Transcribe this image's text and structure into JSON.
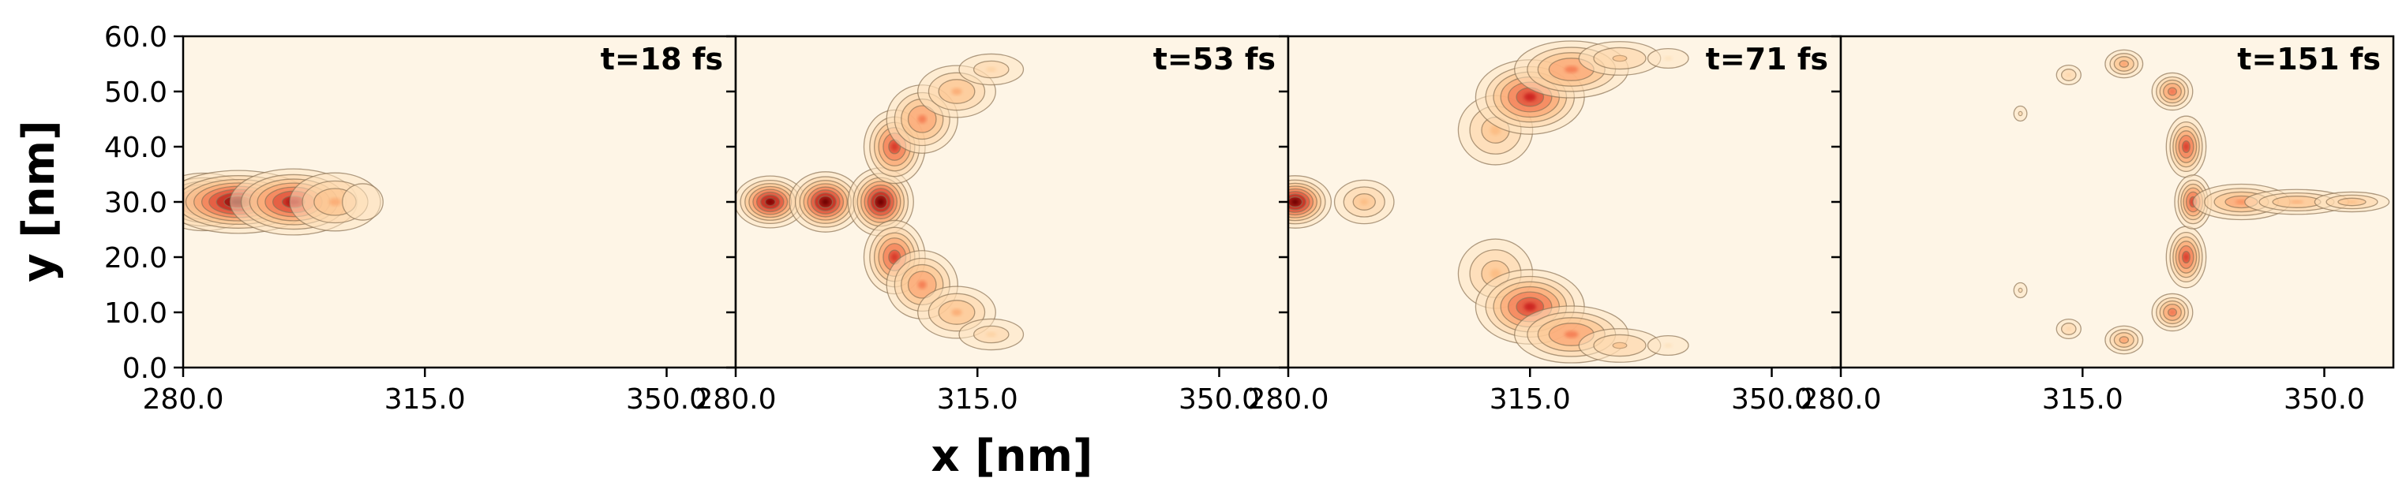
{
  "chart_data": {
    "type": "heatmap",
    "title": "",
    "xlabel": "x [nm]",
    "ylabel": "y [nm]",
    "colormap": "OrRd",
    "contour_color": "#8b7355",
    "background_color": "#fef5e6",
    "shared_y_axis": true,
    "ylim": [
      0,
      60
    ],
    "yticks": [
      "0.0",
      "10.0",
      "20.0",
      "30.0",
      "40.0",
      "50.0",
      "60.0"
    ],
    "panels": [
      {
        "label": "t=18 fs",
        "xlim": [
          280,
          360
        ],
        "xticks": [
          "280.0",
          "315.0",
          "350.0"
        ],
        "blobs": [
          {
            "x": 283,
            "y": 30,
            "sx": 3,
            "sy": 2.2,
            "amp": 1.0
          },
          {
            "x": 288,
            "y": 30,
            "sx": 4.5,
            "sy": 2.4,
            "amp": 1.0
          },
          {
            "x": 296,
            "y": 30,
            "sx": 4,
            "sy": 2.6,
            "amp": 0.85
          },
          {
            "x": 302,
            "y": 30,
            "sx": 3.5,
            "sy": 2.8,
            "amp": 0.35
          },
          {
            "x": 306,
            "y": 30,
            "sx": 2.5,
            "sy": 2.8,
            "amp": 0.12
          }
        ]
      },
      {
        "label": "t=53 fs",
        "xlim": [
          280,
          360
        ],
        "xticks": [
          "280.0",
          "315.0",
          "350.0"
        ],
        "blobs": [
          {
            "x": 285,
            "y": 30,
            "sx": 2.2,
            "sy": 2.0,
            "amp": 0.95
          },
          {
            "x": 293,
            "y": 30,
            "sx": 2.2,
            "sy": 2.3,
            "amp": 1.0
          },
          {
            "x": 301,
            "y": 30,
            "sx": 2.0,
            "sy": 2.6,
            "amp": 1.0
          },
          {
            "x": 303,
            "y": 40,
            "sx": 2.0,
            "sy": 3.0,
            "amp": 0.7
          },
          {
            "x": 303,
            "y": 20,
            "sx": 2.0,
            "sy": 3.0,
            "amp": 0.7
          },
          {
            "x": 307,
            "y": 45,
            "sx": 2.5,
            "sy": 3.0,
            "amp": 0.5
          },
          {
            "x": 307,
            "y": 15,
            "sx": 2.5,
            "sy": 3.0,
            "amp": 0.5
          },
          {
            "x": 312,
            "y": 50,
            "sx": 3.0,
            "sy": 2.5,
            "amp": 0.35
          },
          {
            "x": 312,
            "y": 10,
            "sx": 3.0,
            "sy": 2.5,
            "amp": 0.35
          },
          {
            "x": 317,
            "y": 54,
            "sx": 3.0,
            "sy": 1.8,
            "amp": 0.2
          },
          {
            "x": 317,
            "y": 6,
            "sx": 3.0,
            "sy": 1.8,
            "amp": 0.2
          }
        ]
      },
      {
        "label": "t=71 fs",
        "xlim": [
          280,
          360
        ],
        "xticks": [
          "280.0",
          "315.0",
          "350.0"
        ],
        "blobs": [
          {
            "x": 281,
            "y": 30,
            "sx": 2.2,
            "sy": 2.0,
            "amp": 1.0
          },
          {
            "x": 291,
            "y": 30,
            "sx": 2.4,
            "sy": 2.2,
            "amp": 0.3
          },
          {
            "x": 310,
            "y": 43,
            "sx": 3.0,
            "sy": 3.5,
            "amp": 0.3
          },
          {
            "x": 315,
            "y": 49,
            "sx": 3.5,
            "sy": 3.0,
            "amp": 0.75
          },
          {
            "x": 321,
            "y": 54,
            "sx": 4.0,
            "sy": 2.5,
            "amp": 0.5
          },
          {
            "x": 328,
            "y": 56,
            "sx": 3.5,
            "sy": 1.8,
            "amp": 0.25
          },
          {
            "x": 335,
            "y": 56,
            "sx": 2.5,
            "sy": 1.5,
            "amp": 0.12
          },
          {
            "x": 310,
            "y": 17,
            "sx": 3.0,
            "sy": 3.5,
            "amp": 0.3
          },
          {
            "x": 315,
            "y": 11,
            "sx": 3.5,
            "sy": 3.0,
            "amp": 0.75
          },
          {
            "x": 321,
            "y": 6,
            "sx": 4.0,
            "sy": 2.5,
            "amp": 0.5
          },
          {
            "x": 328,
            "y": 4,
            "sx": 3.5,
            "sy": 1.8,
            "amp": 0.25
          },
          {
            "x": 335,
            "y": 4,
            "sx": 2.5,
            "sy": 1.5,
            "amp": 0.12
          }
        ]
      },
      {
        "label": "t=151 fs",
        "xlim": [
          280,
          360
        ],
        "xticks": [
          "280.0",
          "315.0",
          "350.0"
        ],
        "blobs": [
          {
            "x": 306,
            "y": 46,
            "sx": 0.7,
            "sy": 1.0,
            "amp": 0.15
          },
          {
            "x": 306,
            "y": 14,
            "sx": 0.7,
            "sy": 1.0,
            "amp": 0.15
          },
          {
            "x": 313,
            "y": 53,
            "sx": 1.1,
            "sy": 1.1,
            "amp": 0.22
          },
          {
            "x": 313,
            "y": 7,
            "sx": 1.1,
            "sy": 1.1,
            "amp": 0.22
          },
          {
            "x": 321,
            "y": 55,
            "sx": 1.4,
            "sy": 1.3,
            "amp": 0.4
          },
          {
            "x": 321,
            "y": 5,
            "sx": 1.4,
            "sy": 1.3,
            "amp": 0.4
          },
          {
            "x": 328,
            "y": 50,
            "sx": 1.4,
            "sy": 1.6,
            "amp": 0.55
          },
          {
            "x": 328,
            "y": 10,
            "sx": 1.4,
            "sy": 1.6,
            "amp": 0.55
          },
          {
            "x": 330,
            "y": 40,
            "sx": 1.3,
            "sy": 2.5,
            "amp": 0.7
          },
          {
            "x": 330,
            "y": 20,
            "sx": 1.3,
            "sy": 2.5,
            "amp": 0.7
          },
          {
            "x": 331,
            "y": 30,
            "sx": 1.2,
            "sy": 2.2,
            "amp": 0.7
          },
          {
            "x": 338,
            "y": 30,
            "sx": 3.5,
            "sy": 1.6,
            "amp": 0.45
          },
          {
            "x": 346,
            "y": 30,
            "sx": 4.0,
            "sy": 1.2,
            "amp": 0.35
          },
          {
            "x": 354,
            "y": 30,
            "sx": 3.0,
            "sy": 1.0,
            "amp": 0.3
          }
        ]
      }
    ]
  }
}
